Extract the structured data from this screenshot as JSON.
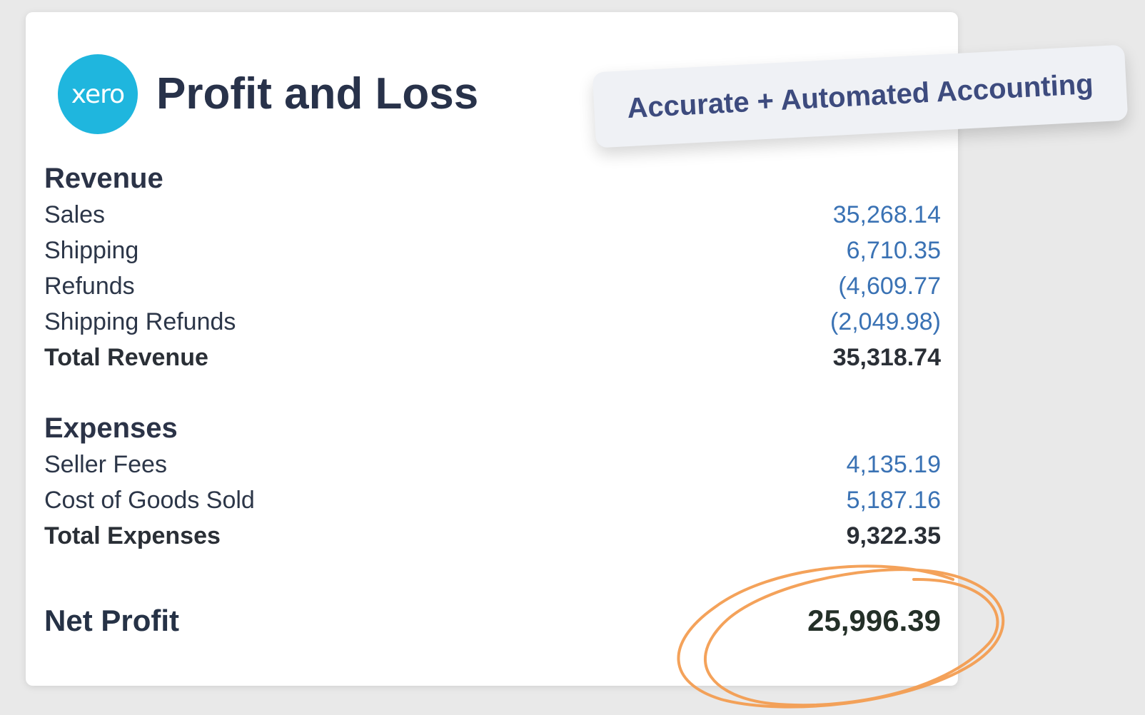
{
  "brand": {
    "logo_text": "xero",
    "title": "Profit and Loss",
    "tagline": "Accurate + Automated Accounting"
  },
  "colors": {
    "logo": "#1fb6de",
    "value_blue": "#3a72b4",
    "heading": "#28324a",
    "highlight_circle": "#f39a4c"
  },
  "revenue": {
    "heading": "Revenue",
    "items": [
      {
        "label": "Sales",
        "value": "35,268.14"
      },
      {
        "label": "Shipping",
        "value": "6,710.35"
      },
      {
        "label": "Refunds",
        "value": "(4,609.77"
      },
      {
        "label": "Shipping Refunds",
        "value": "(2,049.98)"
      }
    ],
    "total_label": "Total Revenue",
    "total_value": "35,318.74"
  },
  "expenses": {
    "heading": "Expenses",
    "items": [
      {
        "label": "Seller Fees",
        "value": "4,135.19"
      },
      {
        "label": "Cost of Goods Sold",
        "value": "5,187.16"
      }
    ],
    "total_label": "Total Expenses",
    "total_value": "9,322.35"
  },
  "net_profit": {
    "label": "Net Profit",
    "value": "25,996.39"
  }
}
